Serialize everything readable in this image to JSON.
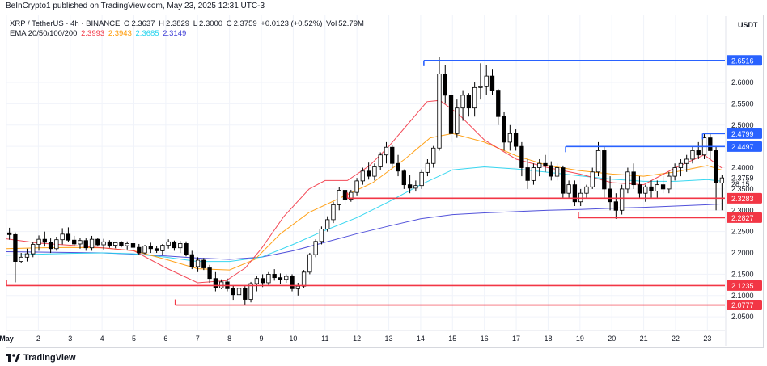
{
  "credit": "BeInCrypto1 published on TradingView.com, May 23, 2025 12:31 UTC-3",
  "legend": {
    "symbol": "XRP / TetherUS · 4h · BINANCE",
    "o_label": "O",
    "o": "2.3637",
    "h_label": "H",
    "h": "2.3829",
    "l_label": "L",
    "l": "2.3000",
    "c_label": "C",
    "c": "2.3759",
    "change": "+0.0123 (+0.52%)",
    "vol_label": "Vol",
    "vol": "52.79M",
    "ema_label": "EMA 20/50/100/200",
    "ema_values": [
      "2.3993",
      "2.3943",
      "2.3685",
      "2.3149"
    ]
  },
  "currency": "USDT",
  "footer": {
    "brand": "TradingView"
  },
  "colors": {
    "up": "#ffffff",
    "down": "#000000",
    "wick": "#000000",
    "ema20": "#f23645",
    "ema50": "#ff9800",
    "ema100": "#22d3ee",
    "ema200": "#3f3fd6",
    "support": "#f23645",
    "resistance": "#2962ff",
    "grid": "#f0f3fa"
  },
  "chart_data": {
    "type": "candlestick",
    "interval": "4h",
    "yticks": [
      2.05,
      2.1,
      2.15,
      2.2,
      2.25,
      2.3,
      2.35,
      2.4,
      2.45,
      2.5,
      2.55,
      2.6
    ],
    "ylim": [
      2.02,
      2.71
    ],
    "xlabels": [
      "May",
      "2",
      "3",
      "4",
      "5",
      "6",
      "7",
      "8",
      "9",
      "10",
      "11",
      "12",
      "13",
      "14",
      "15",
      "16",
      "17",
      "18",
      "19",
      "20",
      "21",
      "22",
      "23"
    ],
    "xlim": [
      0,
      22.55
    ],
    "price_tags": [
      {
        "label": "2.6516",
        "value": 2.6516,
        "kind": "resistance"
      },
      {
        "label": "2.4799",
        "value": 2.4799,
        "kind": "resistance"
      },
      {
        "label": "2.4497",
        "value": 2.4497,
        "kind": "resistance"
      },
      {
        "label": "2.3759",
        "value": 2.3759,
        "kind": "last"
      },
      {
        "label": "28:15",
        "value": 2.362,
        "kind": "countdown"
      },
      {
        "label": "2.3283",
        "value": 2.3283,
        "kind": "support"
      },
      {
        "label": "2.2827",
        "value": 2.2827,
        "kind": "support"
      },
      {
        "label": "2.1235",
        "value": 2.1235,
        "kind": "support"
      },
      {
        "label": "2.0777",
        "value": 2.0777,
        "kind": "support"
      }
    ],
    "levels": [
      {
        "value": 2.6516,
        "from_day": 13.1,
        "kind": "resistance"
      },
      {
        "value": 2.4799,
        "from_day": 21.85,
        "kind": "resistance"
      },
      {
        "value": 2.4497,
        "from_day": 17.55,
        "kind": "resistance"
      },
      {
        "value": 2.3283,
        "from_day": 10.7,
        "kind": "support"
      },
      {
        "value": 2.2827,
        "from_day": 17.95,
        "kind": "support"
      },
      {
        "value": 2.1235,
        "from_day": 0.0,
        "kind": "support"
      },
      {
        "value": 2.0777,
        "from_day": 5.3,
        "kind": "support"
      }
    ],
    "candles": [
      [
        2.247,
        2.259,
        2.231,
        2.243
      ],
      [
        2.243,
        2.248,
        2.131,
        2.18
      ],
      [
        2.18,
        2.2,
        2.176,
        2.19
      ],
      [
        2.19,
        2.21,
        2.18,
        2.198
      ],
      [
        2.198,
        2.225,
        2.19,
        2.22
      ],
      [
        2.22,
        2.241,
        2.205,
        2.232
      ],
      [
        2.232,
        2.25,
        2.215,
        2.225
      ],
      [
        2.225,
        2.234,
        2.2,
        2.21
      ],
      [
        2.21,
        2.238,
        2.205,
        2.231
      ],
      [
        2.231,
        2.258,
        2.22,
        2.244
      ],
      [
        2.244,
        2.26,
        2.225,
        2.23
      ],
      [
        2.23,
        2.24,
        2.215,
        2.221
      ],
      [
        2.221,
        2.235,
        2.21,
        2.229
      ],
      [
        2.229,
        2.234,
        2.205,
        2.212
      ],
      [
        2.212,
        2.24,
        2.205,
        2.232
      ],
      [
        2.232,
        2.236,
        2.215,
        2.219
      ],
      [
        2.219,
        2.233,
        2.208,
        2.226
      ],
      [
        2.226,
        2.23,
        2.212,
        2.218
      ],
      [
        2.218,
        2.226,
        2.211,
        2.224
      ],
      [
        2.224,
        2.228,
        2.213,
        2.217
      ],
      [
        2.217,
        2.227,
        2.208,
        2.222
      ],
      [
        2.222,
        2.226,
        2.205,
        2.213
      ],
      [
        2.213,
        2.221,
        2.195,
        2.2
      ],
      [
        2.2,
        2.219,
        2.197,
        2.216
      ],
      [
        2.216,
        2.224,
        2.2,
        2.21
      ],
      [
        2.21,
        2.216,
        2.2,
        2.205
      ],
      [
        2.205,
        2.221,
        2.195,
        2.218
      ],
      [
        2.218,
        2.232,
        2.21,
        2.226
      ],
      [
        2.226,
        2.229,
        2.205,
        2.212
      ],
      [
        2.212,
        2.228,
        2.2,
        2.222
      ],
      [
        2.222,
        2.227,
        2.192,
        2.196
      ],
      [
        2.196,
        2.205,
        2.162,
        2.168
      ],
      [
        2.168,
        2.19,
        2.155,
        2.183
      ],
      [
        2.183,
        2.188,
        2.16,
        2.165
      ],
      [
        2.165,
        2.172,
        2.13,
        2.14
      ],
      [
        2.14,
        2.155,
        2.11,
        2.118
      ],
      [
        2.118,
        2.138,
        2.115,
        2.132
      ],
      [
        2.132,
        2.14,
        2.11,
        2.116
      ],
      [
        2.116,
        2.124,
        2.09,
        2.102
      ],
      [
        2.102,
        2.121,
        2.095,
        2.117
      ],
      [
        2.117,
        2.122,
        2.078,
        2.091
      ],
      [
        2.091,
        2.132,
        2.084,
        2.128
      ],
      [
        2.128,
        2.145,
        2.11,
        2.14
      ],
      [
        2.14,
        2.15,
        2.12,
        2.13
      ],
      [
        2.13,
        2.155,
        2.125,
        2.15
      ],
      [
        2.15,
        2.162,
        2.135,
        2.142
      ],
      [
        2.142,
        2.152,
        2.128,
        2.138
      ],
      [
        2.138,
        2.15,
        2.13,
        2.145
      ],
      [
        2.145,
        2.15,
        2.11,
        2.116
      ],
      [
        2.116,
        2.13,
        2.1,
        2.122
      ],
      [
        2.122,
        2.16,
        2.118,
        2.155
      ],
      [
        2.155,
        2.2,
        2.15,
        2.196
      ],
      [
        2.196,
        2.232,
        2.19,
        2.227
      ],
      [
        2.227,
        2.262,
        2.22,
        2.256
      ],
      [
        2.256,
        2.286,
        2.25,
        2.278
      ],
      [
        2.278,
        2.32,
        2.27,
        2.313
      ],
      [
        2.313,
        2.355,
        2.3,
        2.347
      ],
      [
        2.347,
        2.345,
        2.315,
        2.326
      ],
      [
        2.326,
        2.348,
        2.32,
        2.342
      ],
      [
        2.342,
        2.376,
        2.335,
        2.369
      ],
      [
        2.369,
        2.4,
        2.36,
        2.392
      ],
      [
        2.392,
        2.412,
        2.372,
        2.38
      ],
      [
        2.38,
        2.41,
        2.37,
        2.402
      ],
      [
        2.402,
        2.436,
        2.395,
        2.43
      ],
      [
        2.43,
        2.46,
        2.41,
        2.448
      ],
      [
        2.448,
        2.454,
        2.4,
        2.41
      ],
      [
        2.41,
        2.43,
        2.38,
        2.392
      ],
      [
        2.392,
        2.396,
        2.35,
        2.36
      ],
      [
        2.36,
        2.382,
        2.34,
        2.352
      ],
      [
        2.352,
        2.37,
        2.344,
        2.358
      ],
      [
        2.358,
        2.396,
        2.35,
        2.389
      ],
      [
        2.389,
        2.42,
        2.38,
        2.41
      ],
      [
        2.41,
        2.451,
        2.4,
        2.446
      ],
      [
        2.446,
        2.66,
        2.44,
        2.62
      ],
      [
        2.62,
        2.64,
        2.55,
        2.57
      ],
      [
        2.57,
        2.58,
        2.46,
        2.48
      ],
      [
        2.48,
        2.56,
        2.47,
        2.54
      ],
      [
        2.54,
        2.58,
        2.51,
        2.57
      ],
      [
        2.57,
        2.575,
        2.52,
        2.54
      ],
      [
        2.54,
        2.6,
        2.52,
        2.588
      ],
      [
        2.588,
        2.645,
        2.56,
        2.59
      ],
      [
        2.59,
        2.641,
        2.57,
        2.615
      ],
      [
        2.615,
        2.63,
        2.57,
        2.58
      ],
      [
        2.58,
        2.585,
        2.5,
        2.52
      ],
      [
        2.52,
        2.53,
        2.44,
        2.46
      ],
      [
        2.46,
        2.5,
        2.44,
        2.48
      ],
      [
        2.48,
        2.49,
        2.44,
        2.45
      ],
      [
        2.45,
        2.46,
        2.38,
        2.4
      ],
      [
        2.4,
        2.42,
        2.35,
        2.37
      ],
      [
        2.37,
        2.41,
        2.36,
        2.4
      ],
      [
        2.4,
        2.42,
        2.38,
        2.41
      ],
      [
        2.41,
        2.43,
        2.39,
        2.405
      ],
      [
        2.405,
        2.415,
        2.37,
        2.38
      ],
      [
        2.38,
        2.41,
        2.37,
        2.4
      ],
      [
        2.4,
        2.405,
        2.33,
        2.34
      ],
      [
        2.34,
        2.37,
        2.33,
        2.36
      ],
      [
        2.36,
        2.37,
        2.31,
        2.32
      ],
      [
        2.32,
        2.35,
        2.31,
        2.34
      ],
      [
        2.34,
        2.36,
        2.33,
        2.355
      ],
      [
        2.355,
        2.4,
        2.35,
        2.39
      ],
      [
        2.39,
        2.46,
        2.38,
        2.44
      ],
      [
        2.44,
        2.45,
        2.33,
        2.35
      ],
      [
        2.35,
        2.38,
        2.3,
        2.32
      ],
      [
        2.32,
        2.34,
        2.28,
        2.3
      ],
      [
        2.3,
        2.36,
        2.29,
        2.35
      ],
      [
        2.35,
        2.4,
        2.34,
        2.39
      ],
      [
        2.39,
        2.41,
        2.35,
        2.36
      ],
      [
        2.36,
        2.38,
        2.33,
        2.34
      ],
      [
        2.34,
        2.36,
        2.32,
        2.355
      ],
      [
        2.355,
        2.37,
        2.33,
        2.345
      ],
      [
        2.345,
        2.37,
        2.33,
        2.36
      ],
      [
        2.36,
        2.38,
        2.34,
        2.35
      ],
      [
        2.35,
        2.39,
        2.34,
        2.38
      ],
      [
        2.38,
        2.41,
        2.37,
        2.4
      ],
      [
        2.4,
        2.42,
        2.38,
        2.41
      ],
      [
        2.41,
        2.43,
        2.39,
        2.42
      ],
      [
        2.42,
        2.45,
        2.41,
        2.44
      ],
      [
        2.44,
        2.46,
        2.42,
        2.43
      ],
      [
        2.43,
        2.48,
        2.42,
        2.47
      ],
      [
        2.47,
        2.48,
        2.42,
        2.44
      ],
      [
        2.44,
        2.45,
        2.3,
        2.364
      ],
      [
        2.364,
        2.383,
        2.3,
        2.376
      ]
    ],
    "ema": {
      "ema20": {
        "label": "2.3993",
        "points": [
          [
            0.0,
            2.233
          ],
          [
            1.0,
            2.223
          ],
          [
            2.0,
            2.218
          ],
          [
            3.0,
            2.212
          ],
          [
            4.0,
            2.205
          ],
          [
            5.0,
            2.165
          ],
          [
            6.0,
            2.13
          ],
          [
            6.9,
            2.135
          ],
          [
            7.5,
            2.165
          ],
          [
            8.0,
            2.21
          ],
          [
            8.7,
            2.285
          ],
          [
            9.5,
            2.35
          ],
          [
            10.0,
            2.37
          ],
          [
            10.7,
            2.37
          ],
          [
            11.4,
            2.405
          ],
          [
            12.0,
            2.45
          ],
          [
            12.8,
            2.52
          ],
          [
            13.2,
            2.555
          ],
          [
            13.6,
            2.558
          ],
          [
            14.2,
            2.525
          ],
          [
            15.0,
            2.465
          ],
          [
            16.0,
            2.42
          ],
          [
            17.0,
            2.4
          ],
          [
            18.0,
            2.385
          ],
          [
            19.0,
            2.365
          ],
          [
            20.0,
            2.36
          ],
          [
            21.0,
            2.4
          ],
          [
            21.9,
            2.43
          ],
          [
            22.45,
            2.3993
          ]
        ]
      },
      "ema50": {
        "label": "2.3943",
        "points": [
          [
            0.0,
            2.21
          ],
          [
            1.0,
            2.212
          ],
          [
            2.0,
            2.213
          ],
          [
            3.0,
            2.212
          ],
          [
            4.0,
            2.205
          ],
          [
            5.0,
            2.185
          ],
          [
            6.0,
            2.163
          ],
          [
            7.0,
            2.16
          ],
          [
            7.8,
            2.185
          ],
          [
            8.6,
            2.245
          ],
          [
            9.5,
            2.295
          ],
          [
            10.5,
            2.33
          ],
          [
            11.5,
            2.365
          ],
          [
            12.5,
            2.42
          ],
          [
            13.3,
            2.47
          ],
          [
            14.0,
            2.48
          ],
          [
            15.0,
            2.46
          ],
          [
            16.0,
            2.428
          ],
          [
            17.0,
            2.405
          ],
          [
            18.0,
            2.393
          ],
          [
            19.0,
            2.385
          ],
          [
            20.0,
            2.38
          ],
          [
            21.0,
            2.39
          ],
          [
            22.0,
            2.405
          ],
          [
            22.45,
            2.3943
          ]
        ]
      },
      "ema100": {
        "label": "2.3685",
        "points": [
          [
            0.0,
            2.195
          ],
          [
            1.0,
            2.197
          ],
          [
            2.0,
            2.199
          ],
          [
            3.0,
            2.2
          ],
          [
            4.0,
            2.198
          ],
          [
            5.0,
            2.19
          ],
          [
            6.0,
            2.18
          ],
          [
            7.0,
            2.18
          ],
          [
            8.0,
            2.19
          ],
          [
            9.0,
            2.22
          ],
          [
            10.0,
            2.253
          ],
          [
            11.0,
            2.283
          ],
          [
            12.0,
            2.32
          ],
          [
            13.0,
            2.36
          ],
          [
            14.0,
            2.395
          ],
          [
            15.0,
            2.402
          ],
          [
            16.0,
            2.397
          ],
          [
            17.0,
            2.389
          ],
          [
            18.0,
            2.381
          ],
          [
            19.0,
            2.373
          ],
          [
            20.0,
            2.368
          ],
          [
            21.0,
            2.368
          ],
          [
            22.0,
            2.372
          ],
          [
            22.45,
            2.3685
          ]
        ]
      },
      "ema200": {
        "label": "2.3149",
        "points": [
          [
            0.0,
            2.203
          ],
          [
            1.0,
            2.202
          ],
          [
            2.0,
            2.201
          ],
          [
            3.0,
            2.2
          ],
          [
            4.0,
            2.197
          ],
          [
            5.0,
            2.193
          ],
          [
            6.0,
            2.188
          ],
          [
            7.0,
            2.185
          ],
          [
            8.0,
            2.19
          ],
          [
            9.0,
            2.205
          ],
          [
            10.0,
            2.225
          ],
          [
            11.0,
            2.245
          ],
          [
            12.0,
            2.263
          ],
          [
            13.0,
            2.28
          ],
          [
            14.0,
            2.29
          ],
          [
            15.0,
            2.294
          ],
          [
            16.0,
            2.297
          ],
          [
            17.0,
            2.3
          ],
          [
            18.0,
            2.302
          ],
          [
            19.0,
            2.305
          ],
          [
            20.0,
            2.307
          ],
          [
            21.0,
            2.31
          ],
          [
            22.0,
            2.313
          ],
          [
            22.45,
            2.3149
          ]
        ]
      }
    }
  }
}
